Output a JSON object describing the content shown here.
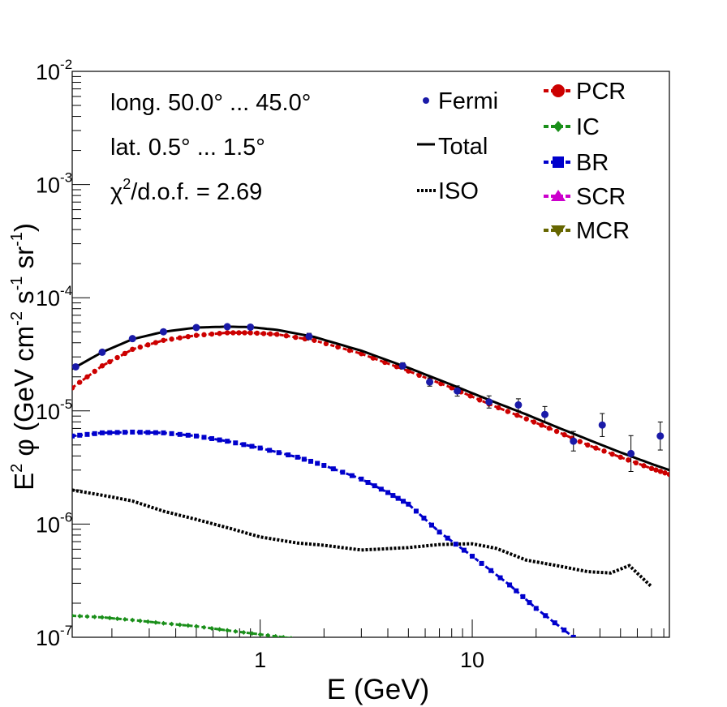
{
  "chart_data": {
    "type": "line",
    "xscale": "log",
    "yscale": "log",
    "xlim": [
      0.13,
      85
    ],
    "ylim": [
      1e-07,
      0.01
    ],
    "xlabel": "E (GeV)",
    "ylabel_main": "E",
    "ylabel_tail": "(GeV cm",
    "ylabel_sup1": "2",
    "ylabel_sup2": "-2",
    "ylabel_mid": "s",
    "ylabel_sup3": "-1",
    "ylabel_sr": "sr",
    "ylabel_sup4": "-1",
    "ylabel_close": ")",
    "ylabel_phi": "φ",
    "ytick_base": "10",
    "yticks": [
      {
        "value": 1e-07,
        "exp": "-7"
      },
      {
        "value": 1e-06,
        "exp": "-6"
      },
      {
        "value": 1e-05,
        "exp": "-5"
      },
      {
        "value": 0.0001,
        "exp": "-4"
      },
      {
        "value": 0.001,
        "exp": "-3"
      },
      {
        "value": 0.01,
        "exp": "-2"
      }
    ],
    "xticks": [
      {
        "value": 1,
        "label": "1"
      },
      {
        "value": 10,
        "label": "10"
      }
    ],
    "annotations": {
      "longitude": "long. 50.0° ... 45.0°",
      "latitude": "lat. 0.5° ... 1.5°",
      "chi_prefix": "χ",
      "chi_sup": "2",
      "chi_suffix": "/d.o.f. = 2.69"
    },
    "legend_left": [
      {
        "name": "Fermi",
        "marker": "dot",
        "color": "#1a1aa8"
      },
      {
        "name": "Total",
        "marker": "solid-line",
        "color": "#000000"
      },
      {
        "name": "ISO",
        "marker": "dotted-line",
        "color": "#000000"
      }
    ],
    "legend_right": [
      {
        "name": "PCR",
        "marker": "circle",
        "color": "#cc0000"
      },
      {
        "name": "IC",
        "marker": "diamond",
        "color": "#1a8f1a"
      },
      {
        "name": "BR",
        "marker": "square",
        "color": "#0000cc"
      },
      {
        "name": "SCR",
        "marker": "triangle-up",
        "color": "#cc00cc"
      },
      {
        "name": "MCR",
        "marker": "triangle-down",
        "color": "#666600"
      }
    ],
    "series": [
      {
        "name": "Total",
        "style": "solid",
        "color": "#000000",
        "x": [
          0.13,
          0.18,
          0.25,
          0.35,
          0.5,
          0.7,
          0.9,
          1.2,
          1.8,
          3,
          5,
          8,
          12,
          18,
          25,
          35,
          50,
          70,
          85
        ],
        "y": [
          2.35e-05,
          3.3e-05,
          4.3e-05,
          5e-05,
          5.45e-05,
          5.55e-05,
          5.5e-05,
          5.2e-05,
          4.5e-05,
          3.4e-05,
          2.4e-05,
          1.7e-05,
          1.25e-05,
          9.3e-06,
          7.2e-06,
          5.6e-06,
          4.3e-06,
          3.4e-06,
          3e-06
        ]
      },
      {
        "name": "PCR",
        "style": "dashed-markers",
        "color": "#cc0000",
        "x": [
          0.13,
          0.18,
          0.25,
          0.35,
          0.5,
          0.7,
          0.9,
          1.2,
          1.8,
          3,
          5,
          8,
          12,
          18,
          25,
          35,
          50,
          70,
          85
        ],
        "y": [
          1.6e-05,
          2.5e-05,
          3.5e-05,
          4.2e-05,
          4.65e-05,
          4.9e-05,
          4.9e-05,
          4.75e-05,
          4.2e-05,
          3.2e-05,
          2.25e-05,
          1.6e-05,
          1.15e-05,
          8.5e-06,
          6.6e-06,
          5e-06,
          3.9e-06,
          3.1e-06,
          2.75e-06
        ]
      },
      {
        "name": "BR",
        "style": "dashed-markers",
        "color": "#0000cc",
        "x": [
          0.13,
          0.18,
          0.25,
          0.35,
          0.5,
          0.7,
          1,
          1.5,
          2,
          3,
          4,
          5,
          7,
          10,
          15,
          20,
          30
        ],
        "y": [
          6e-06,
          6.4e-06,
          6.5e-06,
          6.4e-06,
          6e-06,
          5.4e-06,
          4.7e-06,
          3.9e-06,
          3.3e-06,
          2.5e-06,
          1.9e-06,
          1.5e-06,
          8.5e-07,
          5.2e-07,
          2.9e-07,
          1.8e-07,
          1e-07
        ]
      },
      {
        "name": "ISO",
        "style": "dotted",
        "color": "#000000",
        "x": [
          0.13,
          0.18,
          0.25,
          0.35,
          0.5,
          0.7,
          1,
          1.5,
          2,
          3,
          5,
          7,
          10,
          13,
          18,
          25,
          35,
          45,
          55,
          70
        ],
        "y": [
          2e-06,
          1.8e-06,
          1.6e-06,
          1.3e-06,
          1.1e-06,
          9.3e-07,
          7.7e-07,
          6.8e-07,
          6.5e-07,
          5.9e-07,
          6.2e-07,
          6.6e-07,
          6.7e-07,
          6.1e-07,
          4.8e-07,
          4.3e-07,
          3.8e-07,
          3.7e-07,
          4.3e-07,
          2.8e-07
        ]
      },
      {
        "name": "IC",
        "style": "dashed-markers",
        "color": "#1a8f1a",
        "x": [
          0.13,
          0.18,
          0.25,
          0.35,
          0.5,
          0.7,
          1,
          1.4
        ],
        "y": [
          1.55e-07,
          1.5e-07,
          1.42e-07,
          1.33e-07,
          1.25e-07,
          1.15e-07,
          1.06e-07,
          9.8e-08
        ]
      }
    ],
    "fermi_points": [
      {
        "x": 0.135,
        "y": 2.45e-05,
        "err": 0.02
      },
      {
        "x": 0.18,
        "y": 3.3e-05,
        "err": 0.02
      },
      {
        "x": 0.25,
        "y": 4.35e-05,
        "err": 0.02
      },
      {
        "x": 0.35,
        "y": 5e-05,
        "err": 0.02
      },
      {
        "x": 0.5,
        "y": 5.45e-05,
        "err": 0.02
      },
      {
        "x": 0.7,
        "y": 5.55e-05,
        "err": 0.02
      },
      {
        "x": 0.9,
        "y": 5.5e-05,
        "err": 0.02
      },
      {
        "x": 1.7,
        "y": 4.55e-05,
        "err": 0.03
      },
      {
        "x": 4.7,
        "y": 2.5e-05,
        "err": 0.03
      },
      {
        "x": 6.3,
        "y": 1.8e-05,
        "err": 0.04
      },
      {
        "x": 8.5,
        "y": 1.5e-05,
        "err": 0.05
      },
      {
        "x": 12,
        "y": 1.2e-05,
        "err": 0.06
      },
      {
        "x": 16.5,
        "y": 1.13e-05,
        "err": 0.06
      },
      {
        "x": 22,
        "y": 9.3e-06,
        "err": 0.08
      },
      {
        "x": 30,
        "y": 5.4e-06,
        "err": 0.1
      },
      {
        "x": 41,
        "y": 7.5e-06,
        "err": 0.12
      },
      {
        "x": 56,
        "y": 4.2e-06,
        "err": 0.2
      },
      {
        "x": 77,
        "y": 6e-06,
        "err": 0.15
      }
    ]
  }
}
